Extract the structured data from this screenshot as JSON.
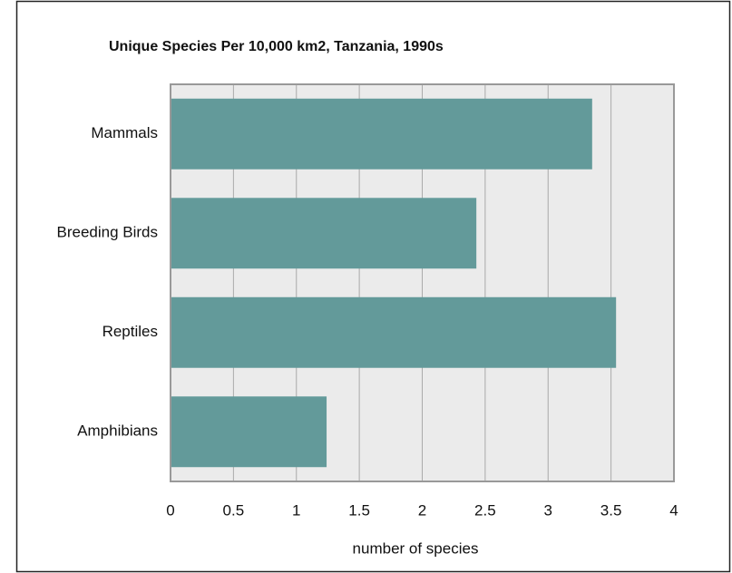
{
  "chart_data": {
    "type": "bar",
    "orientation": "horizontal",
    "title": "Unique Species Per 10,000 km2, Tanzania, 1990s",
    "x_label": "number of species",
    "categories": [
      "Mammals",
      "Breeding Birds",
      "Reptiles",
      "Amphibians"
    ],
    "values": [
      3.35,
      2.43,
      3.54,
      1.24
    ],
    "color": "#639a9a",
    "xlim": [
      0,
      4
    ],
    "xticks": [
      0,
      0.5,
      1,
      1.5,
      2,
      2.5,
      3,
      3.5,
      4
    ],
    "grid": true
  }
}
